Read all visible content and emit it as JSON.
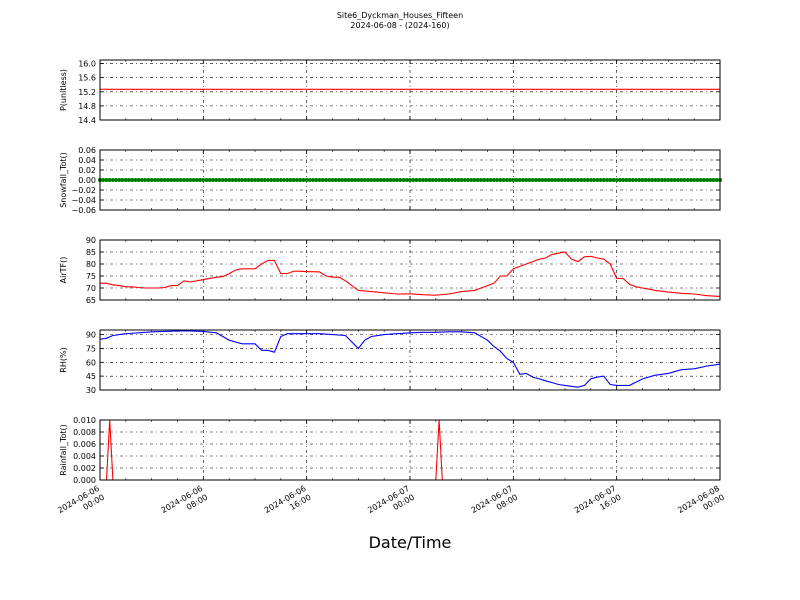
{
  "figure": {
    "title": "Site6_Dyckman_Houses_Fifteen",
    "subtitle": "2024-06-08 - (2024-160)",
    "xlabel": "Date/Time"
  },
  "chart_data": [
    {
      "type": "line",
      "ylabel": "P(unitless)",
      "ylim": [
        14.4,
        16.1
      ],
      "yticks": [
        "16.0",
        "15.6",
        "15.2",
        "14.8",
        "14.4"
      ],
      "color": "#ff0000",
      "grid": true,
      "series": [
        {
          "x": [
            0,
            48
          ],
          "y": [
            15.27,
            15.27
          ]
        }
      ]
    },
    {
      "type": "scatter",
      "ylabel": "Snowfall_Tot()",
      "ylim": [
        -0.06,
        0.06
      ],
      "yticks": [
        "0.06",
        "0.04",
        "0.02",
        "0.00",
        "−0.02",
        "−0.04",
        "−0.06"
      ],
      "color": "#008000",
      "grid": true,
      "series": [
        {
          "x_range": [
            0,
            48
          ],
          "x_step": 0.25,
          "y_constant": 0.0
        }
      ]
    },
    {
      "type": "line",
      "ylabel": "AirTF()",
      "ylim": [
        65,
        90
      ],
      "yticks": [
        "90",
        "85",
        "80",
        "75",
        "70",
        "65"
      ],
      "color": "#ff0000",
      "grid": true,
      "series": [
        {
          "x": [
            0,
            0.5,
            1,
            1.5,
            2,
            2.5,
            3,
            3.5,
            4,
            4.5,
            5,
            5.5,
            6,
            6.5,
            7,
            7.5,
            8,
            8.5,
            9,
            9.5,
            10,
            10.5,
            11,
            11.5,
            12,
            12.5,
            13,
            13.5,
            14,
            14.5,
            15,
            15.5,
            16,
            16.5,
            17,
            17.5,
            18,
            18.5,
            19,
            19.5,
            20,
            21,
            22,
            23,
            24,
            25,
            26,
            27,
            28,
            29,
            30,
            30.5,
            31,
            31.5,
            32,
            32.5,
            33,
            33.5,
            34,
            34.5,
            35,
            35.5,
            36,
            36.5,
            37,
            37.5,
            38,
            38.5,
            39,
            39.5,
            40,
            40.5,
            41,
            41.5,
            42,
            42.5,
            43,
            44,
            45,
            46,
            47,
            48
          ],
          "y": [
            72,
            72,
            71.3,
            71,
            70.5,
            70.5,
            70.2,
            70,
            70,
            70,
            70.2,
            71,
            71,
            73,
            72.5,
            73,
            73.5,
            74,
            74.5,
            74.7,
            76,
            77.5,
            78,
            78,
            78,
            80,
            81.5,
            81.5,
            76,
            76,
            77,
            77,
            76.8,
            76.8,
            76.7,
            75,
            74.5,
            74.5,
            73,
            71,
            69,
            68.5,
            68,
            67.5,
            67.6,
            67.2,
            67,
            67.5,
            68.5,
            69,
            71,
            72,
            75,
            75,
            78,
            79,
            80,
            81,
            82,
            82.5,
            84,
            84.5,
            85,
            82,
            81,
            83,
            83.2,
            82.5,
            82,
            80,
            74,
            74,
            71.5,
            70.5,
            70,
            69.5,
            69,
            68.3,
            67.8,
            67.5,
            66.8,
            66.5
          ]
        }
      ]
    },
    {
      "type": "line",
      "ylabel": "RH(%)",
      "ylim": [
        30,
        95
      ],
      "yticks": [
        "90",
        "75",
        "60",
        "45",
        "30"
      ],
      "color": "#0000ff",
      "grid": true,
      "series": [
        {
          "x": [
            0,
            0.5,
            1,
            1.5,
            2,
            3,
            4,
            5,
            6,
            7,
            8,
            9,
            10,
            10.5,
            11,
            11.5,
            12,
            12.5,
            13,
            13.5,
            14,
            14.5,
            15,
            16,
            17,
            18,
            19,
            20,
            20.5,
            21,
            22,
            23,
            24,
            25,
            26,
            27,
            28,
            29,
            30,
            30.5,
            31,
            31.5,
            32,
            32.5,
            33,
            33.5,
            34,
            34.5,
            35,
            35.5,
            36,
            36.5,
            37,
            37.5,
            38,
            38.5,
            39,
            39.5,
            40,
            41,
            42,
            43,
            44,
            45,
            46,
            47,
            48
          ],
          "y": [
            85,
            86,
            89,
            90,
            91,
            92,
            93,
            93.5,
            94,
            94,
            93.5,
            92,
            84,
            82,
            80,
            80,
            80,
            73,
            73,
            71,
            88,
            91,
            91,
            91,
            91,
            90,
            89,
            75,
            84,
            88,
            90,
            91,
            92,
            92.5,
            92.5,
            93,
            93,
            92,
            84,
            77,
            72,
            64,
            60,
            47,
            48,
            44,
            42,
            40,
            38,
            36,
            35,
            34,
            33,
            35,
            42,
            44,
            45,
            36,
            35,
            35,
            42,
            46,
            48,
            52,
            53,
            56,
            58
          ]
        }
      ]
    },
    {
      "type": "line",
      "ylabel": "Rainfall_Tot()",
      "ylim": [
        0.0,
        0.01
      ],
      "yticks": [
        "0.010",
        "0.008",
        "0.006",
        "0.004",
        "0.002",
        "0.000"
      ],
      "color": "#ff0000",
      "grid": true,
      "series": [
        {
          "x": [
            0,
            0.5,
            0.75,
            1.0,
            26.0,
            26.25,
            26.5,
            48
          ],
          "y": [
            0,
            0,
            0.01,
            0,
            0,
            0.01,
            0,
            0
          ]
        }
      ]
    }
  ],
  "x_axis": {
    "range_hours": [
      0,
      48
    ],
    "tick_hours": [
      0,
      8,
      16,
      24,
      32,
      40,
      48
    ],
    "tick_labels": [
      [
        "2024-06-06",
        "00:00"
      ],
      [
        "2024-06-06",
        "08:00"
      ],
      [
        "2024-06-06",
        "16:00"
      ],
      [
        "2024-06-07",
        "00:00"
      ],
      [
        "2024-06-07",
        "08:00"
      ],
      [
        "2024-06-07",
        "16:00"
      ],
      [
        "2024-06-08",
        "00:00"
      ]
    ]
  }
}
